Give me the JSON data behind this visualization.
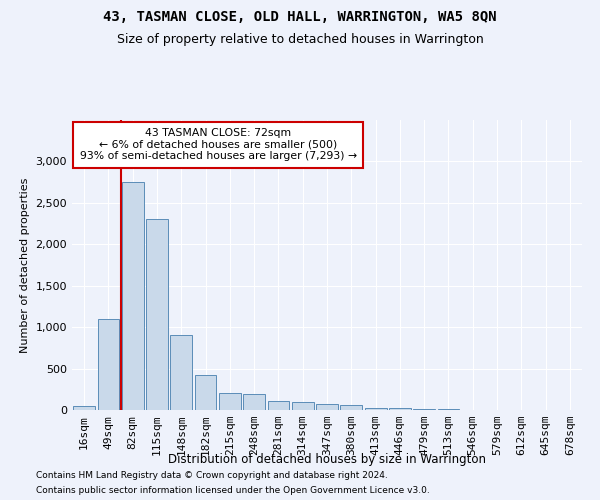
{
  "title": "43, TASMAN CLOSE, OLD HALL, WARRINGTON, WA5 8QN",
  "subtitle": "Size of property relative to detached houses in Warrington",
  "xlabel": "Distribution of detached houses by size in Warrington",
  "ylabel": "Number of detached properties",
  "categories": [
    "16sqm",
    "49sqm",
    "82sqm",
    "115sqm",
    "148sqm",
    "182sqm",
    "215sqm",
    "248sqm",
    "281sqm",
    "314sqm",
    "347sqm",
    "380sqm",
    "413sqm",
    "446sqm",
    "479sqm",
    "513sqm",
    "546sqm",
    "579sqm",
    "612sqm",
    "645sqm",
    "678sqm"
  ],
  "values": [
    50,
    1100,
    2750,
    2300,
    900,
    420,
    200,
    190,
    110,
    100,
    75,
    55,
    30,
    20,
    15,
    10,
    5,
    3,
    2,
    1,
    1
  ],
  "bar_color": "#c9d9ea",
  "bar_edge_color": "#5b8db8",
  "vline_x": 1.5,
  "vline_color": "#cc0000",
  "annotation_line1": "43 TASMAN CLOSE: 72sqm",
  "annotation_line2": "← 6% of detached houses are smaller (500)",
  "annotation_line3": "93% of semi-detached houses are larger (7,293) →",
  "annotation_box_color": "#ffffff",
  "annotation_box_edge_color": "#cc0000",
  "ylim": [
    0,
    3500
  ],
  "yticks": [
    0,
    500,
    1000,
    1500,
    2000,
    2500,
    3000
  ],
  "footer_line1": "Contains HM Land Registry data © Crown copyright and database right 2024.",
  "footer_line2": "Contains public sector information licensed under the Open Government Licence v3.0.",
  "bg_color": "#eef2fb",
  "grid_color": "#ffffff",
  "title_fontsize": 10,
  "subtitle_fontsize": 9
}
